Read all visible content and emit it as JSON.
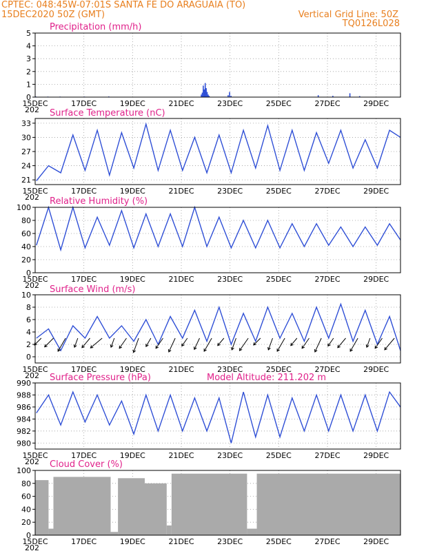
{
  "header": {
    "line1_left": "CPTEC:   048:45W-07:01S   SANTA FE DO ARAGUAIA (TO)",
    "line2_left": "15DEC2020 50Z (GMT)",
    "line2_right": "Vertical Grid Line: 50Z",
    "line3_right": "TQ0126L028"
  },
  "colors": {
    "header": "#e87f1e",
    "title": "#e0218a",
    "series": "#2f4fd6",
    "cloud": "#aaaaaa"
  },
  "x_axis": {
    "labels": [
      "15DEC",
      "17DEC",
      "19DEC",
      "21DEC",
      "23DEC",
      "25DEC",
      "27DEC",
      "29DEC"
    ],
    "lower_label": "202"
  },
  "chart_data": [
    {
      "type": "bar",
      "title": "Precipitation (mm/h)",
      "ylim": [
        0,
        5
      ],
      "yticks": [
        0,
        1,
        2,
        3,
        4,
        5
      ],
      "x_days": [
        0,
        0.5,
        1,
        2,
        3,
        6.8,
        6.84,
        6.88,
        6.92,
        6.96,
        7.0,
        7.04,
        7.08,
        7.12,
        7.9,
        7.96,
        8.02,
        11.6,
        12.2,
        12.9,
        13.3
      ],
      "values": [
        0.05,
        0.04,
        0.04,
        0.04,
        0.05,
        0.2,
        0.35,
        0.9,
        0.6,
        1.1,
        0.7,
        0.4,
        0.2,
        0.1,
        0.15,
        0.4,
        0.1,
        0.15,
        0.1,
        0.3,
        0.08
      ]
    },
    {
      "type": "line",
      "title": "Surface Temperature (nC)",
      "ylim": [
        20,
        34
      ],
      "yticks": [
        21,
        24,
        27,
        30,
        33
      ],
      "peaks": [
        24,
        30.5,
        31.5,
        31.0,
        32.8,
        31.5,
        30.0,
        30.5,
        31.5,
        32.5,
        31.5,
        31.0,
        31.5,
        29.5,
        31.5
      ],
      "troughs": [
        20.8,
        22.5,
        23.0,
        22.0,
        23.5,
        23.0,
        23.0,
        22.5,
        22.5,
        23.5,
        23.0,
        23.0,
        24.5,
        23.5,
        23.5
      ],
      "end_value": 30.0
    },
    {
      "type": "line",
      "title": "Relative Humidity (%)",
      "ylim": [
        0,
        100
      ],
      "yticks": [
        0,
        20,
        40,
        60,
        80,
        100
      ],
      "peaks": [
        100,
        100,
        85,
        95,
        90,
        90,
        100,
        85,
        80,
        80,
        75,
        75,
        70,
        70,
        75
      ],
      "troughs": [
        42,
        35,
        38,
        42,
        38,
        40,
        40,
        40,
        38,
        38,
        38,
        40,
        42,
        40,
        42
      ],
      "end_value": 50
    },
    {
      "type": "line",
      "title": "Surface Wind (m/s)",
      "ylim": [
        -1,
        10
      ],
      "yticks": [
        0,
        2,
        4,
        6,
        8,
        10
      ],
      "peaks": [
        4.5,
        5.0,
        6.5,
        5.0,
        6.0,
        6.5,
        7.5,
        8.0,
        7.0,
        8.0,
        7.0,
        8.0,
        8.5,
        7.5,
        6.5
      ],
      "troughs": [
        3.0,
        1.0,
        3.0,
        3.0,
        2.5,
        2.0,
        3.0,
        2.5,
        2.0,
        2.5,
        3.0,
        2.5,
        3.0,
        2.5,
        2.0
      ],
      "end_value": 1.0,
      "arrow_directions_deg": [
        225,
        225,
        210,
        200,
        220,
        230,
        200,
        215,
        200,
        210,
        215,
        205,
        215,
        205,
        210,
        220,
        200,
        215,
        225,
        200,
        210,
        220,
        215,
        205,
        215,
        220,
        210,
        200,
        215,
        220
      ]
    },
    {
      "type": "line",
      "title": "Surface Pressure (hPa)",
      "annotation": "Model Altitude: 211.202 m",
      "ylim": [
        979,
        990
      ],
      "yticks": [
        980,
        982,
        984,
        986,
        988,
        990
      ],
      "peaks": [
        988,
        988.5,
        988,
        987,
        988,
        988,
        987.5,
        987.5,
        988.5,
        988,
        987.5,
        988,
        988,
        988,
        988.5
      ],
      "troughs": [
        985,
        983,
        983.5,
        983,
        981.5,
        982,
        982,
        982,
        980,
        981,
        981,
        982,
        982,
        982,
        982
      ],
      "end_value": 986.0
    },
    {
      "type": "area",
      "title": "Cloud Cover (%)",
      "ylim": [
        0,
        100
      ],
      "yticks": [
        0,
        20,
        40,
        60,
        80,
        100
      ],
      "segments": [
        {
          "from": 0.0,
          "to": 0.55,
          "level": 85
        },
        {
          "from": 0.55,
          "to": 0.75,
          "level": 10
        },
        {
          "from": 0.75,
          "to": 3.1,
          "level": 90
        },
        {
          "from": 3.1,
          "to": 3.4,
          "level": 5
        },
        {
          "from": 3.4,
          "to": 4.5,
          "level": 88
        },
        {
          "from": 4.5,
          "to": 5.4,
          "level": 80
        },
        {
          "from": 5.4,
          "to": 5.6,
          "level": 15
        },
        {
          "from": 5.6,
          "to": 8.7,
          "level": 95
        },
        {
          "from": 8.7,
          "to": 9.1,
          "level": 10
        },
        {
          "from": 9.1,
          "to": 15.0,
          "level": 95
        }
      ]
    }
  ]
}
